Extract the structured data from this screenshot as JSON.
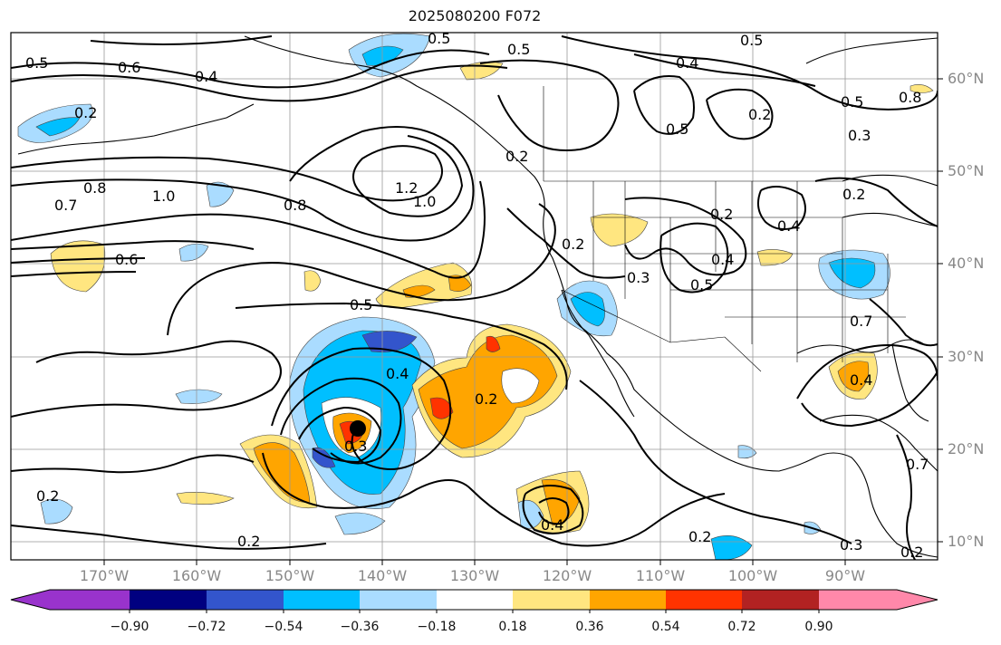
{
  "title": "2025080200 F072",
  "lat_labels": [
    "60°N",
    "50°N",
    "40°N",
    "30°N",
    "20°N",
    "10°N"
  ],
  "lon_labels": [
    "170°W",
    "160°W",
    "150°W",
    "140°W",
    "130°W",
    "120°W",
    "110°W",
    "100°W",
    "90°W"
  ],
  "colorbar": {
    "ticks": [
      "−0.90",
      "−0.72",
      "−0.54",
      "−0.36",
      "−0.18",
      "0.18",
      "0.36",
      "0.54",
      "0.72",
      "0.90"
    ],
    "colors": [
      "#9933cc",
      "#000080",
      "#3355cc",
      "#00bfff",
      "#aadcff",
      "#ffffff",
      "#ffe680",
      "#ffa500",
      "#ff3300",
      "#b22222",
      "#ff88aa"
    ]
  },
  "contour_labels": [
    "0.5",
    "0.5",
    "0.4",
    "0.4",
    "0.5",
    "0.5",
    "0.6",
    "0.2",
    "0.7",
    "0.8",
    "1.0",
    "0.8",
    "1.2",
    "1.0",
    "0.6",
    "0.2",
    "0.2",
    "0.5",
    "0.2",
    "0.4",
    "0.5",
    "0.3",
    "0.2",
    "0.3",
    "0.4",
    "0.2",
    "0.3",
    "0.4",
    "0.5",
    "0.5",
    "0.4",
    "0.2",
    "0.2",
    "0.4",
    "0.2",
    "0.3",
    "0.2",
    "0.2",
    "0.7",
    "0.8",
    "0.7"
  ]
}
